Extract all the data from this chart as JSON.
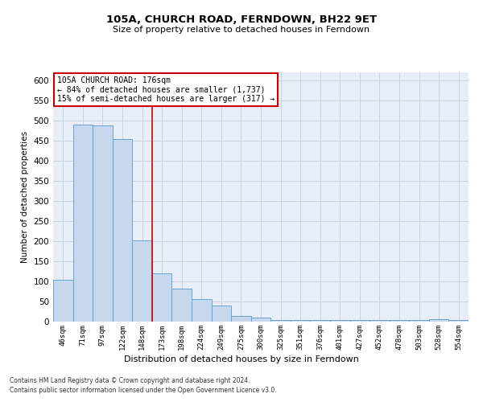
{
  "title": "105A, CHURCH ROAD, FERNDOWN, BH22 9ET",
  "subtitle": "Size of property relative to detached houses in Ferndown",
  "xlabel": "Distribution of detached houses by size in Ferndown",
  "ylabel": "Number of detached properties",
  "footer_line1": "Contains HM Land Registry data © Crown copyright and database right 2024.",
  "footer_line2": "Contains public sector information licensed under the Open Government Licence v3.0.",
  "categories": [
    "46sqm",
    "71sqm",
    "97sqm",
    "122sqm",
    "148sqm",
    "173sqm",
    "198sqm",
    "224sqm",
    "249sqm",
    "275sqm",
    "300sqm",
    "325sqm",
    "351sqm",
    "376sqm",
    "401sqm",
    "427sqm",
    "452sqm",
    "478sqm",
    "503sqm",
    "528sqm",
    "554sqm"
  ],
  "values": [
    105,
    490,
    487,
    453,
    202,
    120,
    82,
    56,
    40,
    15,
    10,
    5,
    5,
    5,
    5,
    5,
    5,
    5,
    5,
    7,
    5
  ],
  "bar_color": "#c5d8ee",
  "bar_edge_color": "#6ba3cc",
  "grid_color": "#c8d4e4",
  "annotation_line1": "105A CHURCH ROAD: 176sqm",
  "annotation_line2": "← 84% of detached houses are smaller (1,737)",
  "annotation_line3": "15% of semi-detached houses are larger (317) →",
  "annotation_box_color": "#ffffff",
  "annotation_box_edge_color": "#cc0000",
  "vline_color": "#cc0000",
  "vline_x_index": 4.5,
  "ylim": [
    0,
    620
  ],
  "yticks": [
    0,
    50,
    100,
    150,
    200,
    250,
    300,
    350,
    400,
    450,
    500,
    550,
    600
  ],
  "bg_color": "#e8eef7"
}
